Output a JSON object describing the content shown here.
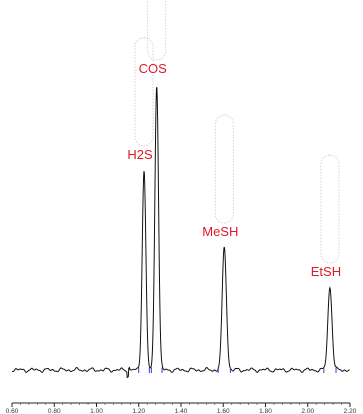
{
  "chart_data": {
    "type": "line",
    "title": "",
    "xlabel": "",
    "ylabel": "",
    "xlim": [
      0.6,
      2.2
    ],
    "ylim": [
      0,
      100
    ],
    "grid": false,
    "x_ticks": [
      0.6,
      0.8,
      1.0,
      1.2,
      1.4,
      1.6,
      1.8,
      2.0,
      2.2
    ],
    "x_tick_labels": [
      "0.60",
      "0.80",
      "1.00",
      "1.20",
      "1.40",
      "1.60",
      "1.80",
      "2.00",
      "2.20"
    ],
    "colors": {
      "trace": "#111111",
      "labels": "#e0182a",
      "baseline_markers": "#3040d0",
      "peak_ranges": "#c9c9c9"
    },
    "peaks": [
      {
        "label": "H2S",
        "rt": 1.225,
        "height": 70,
        "width": 0.014
      },
      {
        "label": "COS",
        "rt": 1.285,
        "height": 100,
        "width": 0.014
      },
      {
        "label": "MeSH",
        "rt": 1.605,
        "height": 43,
        "width": 0.016
      },
      {
        "label": "EtSH",
        "rt": 2.105,
        "height": 29,
        "width": 0.016
      }
    ]
  }
}
